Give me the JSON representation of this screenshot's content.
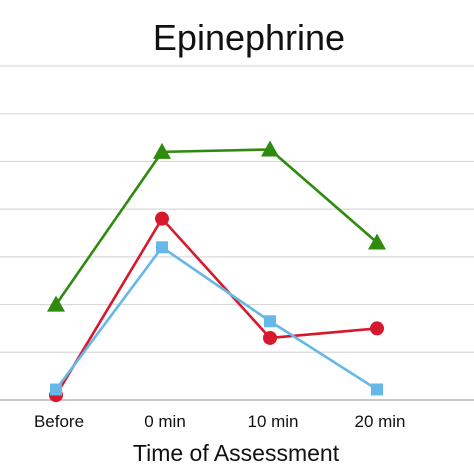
{
  "chart_data": {
    "type": "line",
    "title": "Epinephrine",
    "xlabel": "Time of Assessment",
    "ylabel": "",
    "categories": [
      "Before",
      "0 min",
      "10 min",
      "20 min"
    ],
    "ylim": [
      0,
      7
    ],
    "grid": true,
    "series": [
      {
        "color": "#2e8b0e",
        "marker": "triangle",
        "values": [
          2.0,
          5.2,
          5.25,
          3.3
        ]
      },
      {
        "color": "#d7192d",
        "marker": "circle",
        "values": [
          0.1,
          3.8,
          1.3,
          1.5
        ]
      },
      {
        "color": "#66b8e6",
        "marker": "square",
        "values": [
          0.22,
          3.2,
          1.65,
          0.22
        ]
      }
    ]
  }
}
